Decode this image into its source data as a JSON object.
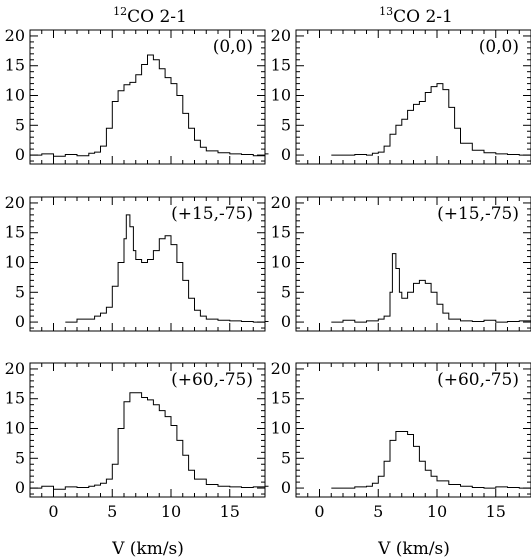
{
  "columns": [
    {
      "iso": "12",
      "title": "CO 2-1"
    },
    {
      "iso": "13",
      "title": "CO 2-1"
    }
  ],
  "xlabel": "V (km/s)",
  "chart_data": [
    {
      "type": "line",
      "step": true,
      "col": 0,
      "row": 0,
      "label": "(0,0)",
      "xlim": [
        -2,
        18
      ],
      "ylim": [
        -1.5,
        21
      ],
      "xticks": [
        0,
        5,
        10,
        15
      ],
      "yticks": [
        0,
        5,
        10,
        15,
        20
      ],
      "x": [
        -2,
        -1,
        0,
        1,
        2,
        3,
        3.5,
        4,
        4.5,
        5,
        5.5,
        6,
        6.5,
        7,
        7.5,
        8,
        8.5,
        9,
        9.5,
        10,
        10.5,
        11,
        11.5,
        12,
        12.5,
        13,
        14,
        15,
        16,
        17,
        18
      ],
      "y": [
        0,
        0.2,
        -0.2,
        0.1,
        -0.1,
        0.3,
        0.5,
        1.5,
        4.5,
        9.0,
        10.8,
        11.8,
        12.2,
        13.5,
        15.2,
        16.8,
        16.0,
        14.5,
        13.0,
        12.0,
        10.0,
        7.0,
        4.5,
        2.5,
        1.3,
        0.7,
        0.4,
        0.2,
        0.1,
        -0.1,
        0.2
      ]
    },
    {
      "type": "line",
      "step": true,
      "col": 1,
      "row": 0,
      "label": "(0,0)",
      "xlim": [
        -2,
        18
      ],
      "ylim": [
        -1.5,
        21
      ],
      "xticks": [
        0,
        5,
        10,
        15
      ],
      "yticks": [
        0,
        5,
        10,
        15,
        20
      ],
      "x": [
        1,
        2,
        3,
        4,
        4.5,
        5,
        5.5,
        6,
        6.5,
        7,
        7.5,
        8,
        8.5,
        9,
        9.5,
        10,
        10.5,
        11,
        11.5,
        12,
        13,
        14,
        15,
        16,
        17,
        18
      ],
      "y": [
        0,
        0,
        0.1,
        0,
        0.3,
        0.5,
        1.5,
        3.5,
        5.0,
        6.0,
        7.5,
        8.5,
        9.0,
        10.5,
        11.5,
        12.0,
        11.0,
        8.0,
        4.5,
        2.0,
        0.8,
        0.4,
        0.2,
        0.1,
        0,
        0.1
      ]
    },
    {
      "type": "line",
      "step": true,
      "col": 0,
      "row": 1,
      "label": "(+15,-75)",
      "xlim": [
        -2,
        18
      ],
      "ylim": [
        -1.5,
        21
      ],
      "xticks": [
        0,
        5,
        10,
        15
      ],
      "yticks": [
        0,
        5,
        10,
        15,
        20
      ],
      "x": [
        1,
        2,
        3,
        3.5,
        4,
        4.5,
        5,
        5.5,
        6,
        6.2,
        6.5,
        6.8,
        7,
        7.5,
        8,
        8.5,
        9,
        9.5,
        10,
        10.5,
        11,
        11.5,
        12,
        12.5,
        13,
        14,
        15,
        16,
        17,
        18
      ],
      "y": [
        0,
        0.5,
        0.5,
        1.0,
        1.5,
        2.5,
        6.0,
        10.0,
        14.0,
        18.0,
        16.0,
        12.0,
        10.5,
        10.0,
        10.5,
        12.0,
        14.0,
        14.5,
        13.0,
        10.0,
        7.0,
        4.0,
        2.0,
        1.0,
        0.5,
        0.3,
        0.2,
        0.1,
        0,
        0.1
      ]
    },
    {
      "type": "line",
      "step": true,
      "col": 1,
      "row": 1,
      "label": "(+15,-75)",
      "xlim": [
        -2,
        18
      ],
      "ylim": [
        -1.5,
        21
      ],
      "xticks": [
        0,
        5,
        10,
        15
      ],
      "yticks": [
        0,
        5,
        10,
        15,
        20
      ],
      "x": [
        1,
        2,
        3,
        4,
        5,
        5.5,
        6,
        6.2,
        6.5,
        6.8,
        7,
        7.5,
        8,
        8.5,
        9,
        9.5,
        10,
        10.5,
        11,
        12,
        13,
        14,
        15,
        16,
        17,
        18
      ],
      "y": [
        0,
        0.3,
        0,
        0.2,
        0.5,
        1.0,
        5.0,
        11.5,
        9.0,
        5.0,
        4.0,
        5.0,
        6.5,
        7.0,
        6.5,
        5.0,
        3.0,
        1.5,
        0.5,
        0.2,
        0.1,
        0.3,
        0,
        0.1,
        0.2,
        0
      ]
    },
    {
      "type": "line",
      "step": true,
      "col": 0,
      "row": 2,
      "label": "(+60,-75)",
      "xlim": [
        -2,
        18
      ],
      "ylim": [
        -1.5,
        21
      ],
      "xticks": [
        0,
        5,
        10,
        15
      ],
      "yticks": [
        0,
        5,
        10,
        15,
        20
      ],
      "x": [
        -2,
        -1,
        0,
        1,
        2,
        3,
        3.5,
        4,
        4.5,
        5,
        5.5,
        6,
        6.5,
        7,
        7.5,
        8,
        8.5,
        9,
        9.5,
        10,
        10.5,
        11,
        11.5,
        12,
        13,
        14,
        15,
        16,
        17,
        18
      ],
      "y": [
        0,
        0.3,
        -0.2,
        0.2,
        0.1,
        0.3,
        0.5,
        0.8,
        1.5,
        4.0,
        10.0,
        14.5,
        16.0,
        16.0,
        15.2,
        14.8,
        14.0,
        13.0,
        12.0,
        10.5,
        8.0,
        5.5,
        3.0,
        1.5,
        0.6,
        0.3,
        0.2,
        0.1,
        0.2,
        0.3
      ]
    },
    {
      "type": "line",
      "step": true,
      "col": 1,
      "row": 2,
      "label": "(+60,-75)",
      "xlim": [
        -2,
        18
      ],
      "ylim": [
        -1.5,
        21
      ],
      "xticks": [
        0,
        5,
        10,
        15
      ],
      "yticks": [
        0,
        5,
        10,
        15,
        20
      ],
      "x": [
        1,
        2,
        3,
        4,
        4.5,
        5,
        5.5,
        6,
        6.5,
        7,
        7.5,
        8,
        8.5,
        9,
        9.5,
        10,
        11,
        12,
        13,
        14,
        15,
        16,
        17,
        18
      ],
      "y": [
        0,
        0,
        0.2,
        0.3,
        0.8,
        2.0,
        4.5,
        8.0,
        9.5,
        9.5,
        9.0,
        7.0,
        4.5,
        3.0,
        2.0,
        1.2,
        0.6,
        0.3,
        0.1,
        0,
        0.2,
        0.1,
        0,
        0.1
      ]
    }
  ]
}
